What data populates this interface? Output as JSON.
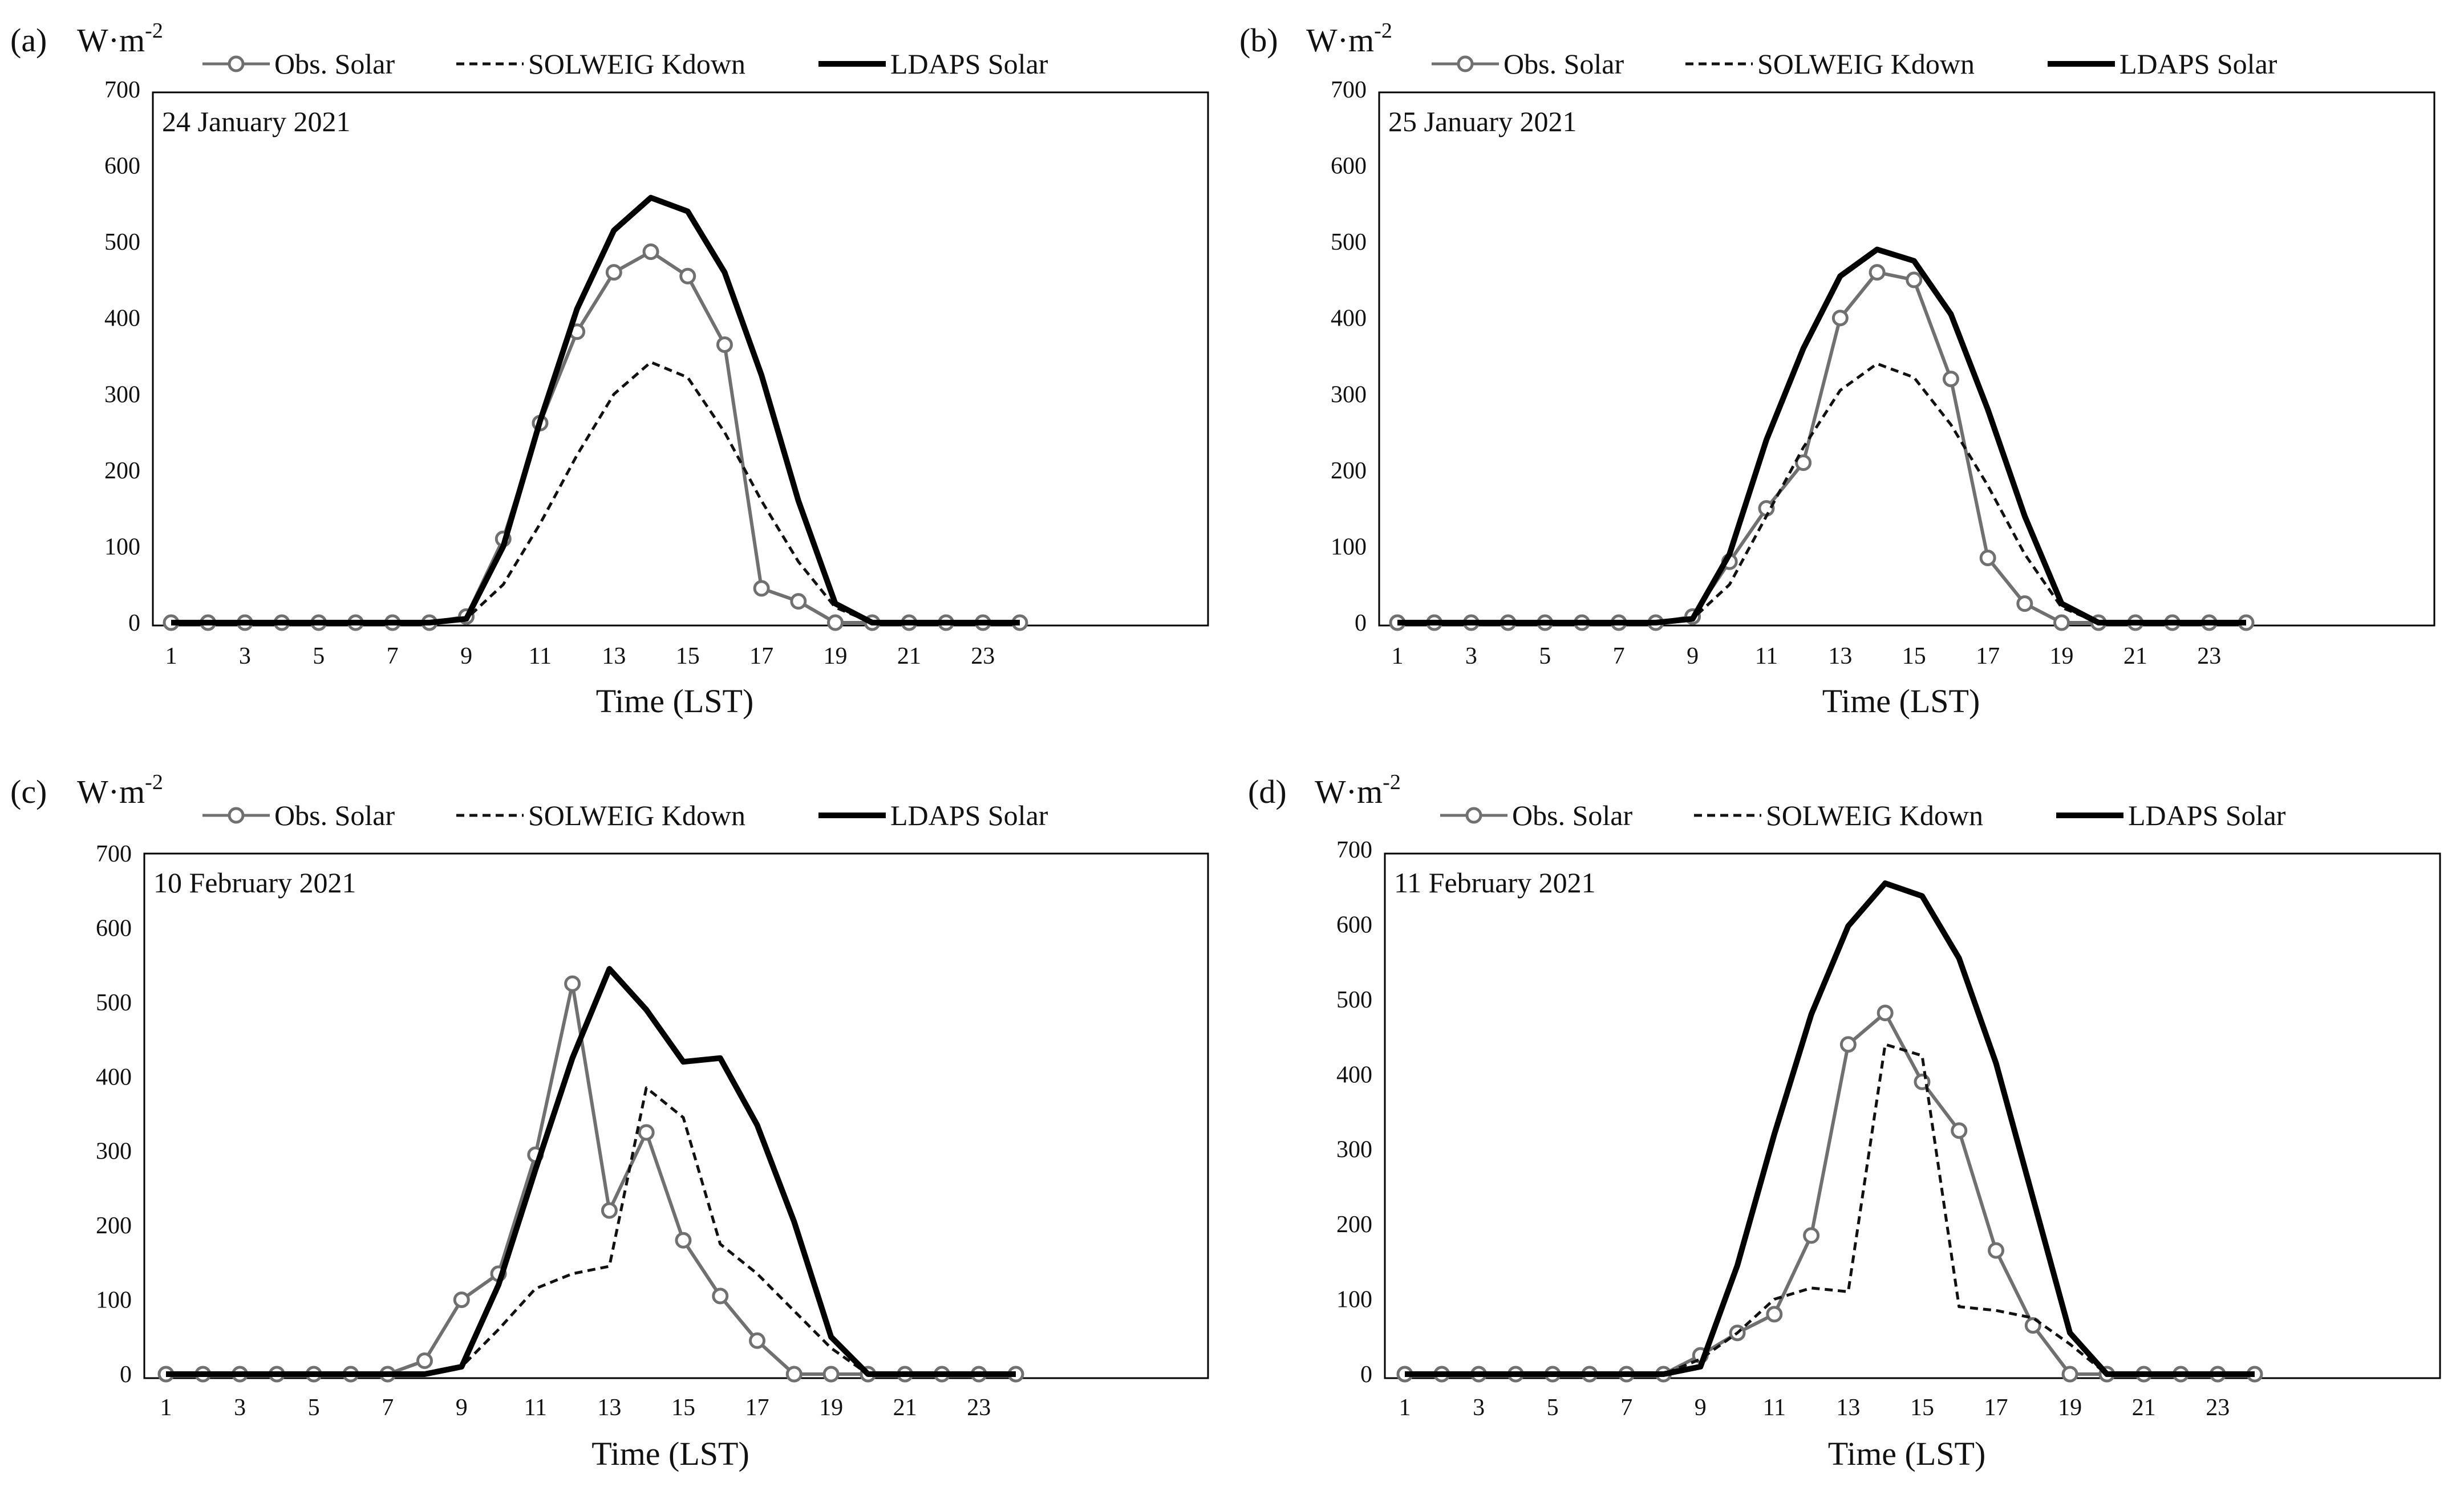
{
  "panels": [
    {
      "letter": "(a)",
      "date": "24 January  2021",
      "unit": "W·m",
      "unit_exp": "-2",
      "xlabel": "Time (LST)",
      "legend": [
        "Obs. Solar",
        "SOLWEIG Kdown",
        "LDAPS Solar"
      ]
    },
    {
      "letter": "(b)",
      "date": "25 January  2021",
      "unit": "W·m",
      "unit_exp": "-2",
      "xlabel": "Time (LST)",
      "legend": [
        "Obs. Solar",
        "SOLWEIG Kdown",
        "LDAPS Solar"
      ]
    },
    {
      "letter": "(c)",
      "date": "10 February  2021",
      "unit": "W·m",
      "unit_exp": "-2",
      "xlabel": "Time (LST)",
      "legend": [
        "Obs. Solar",
        "SOLWEIG Kdown",
        "LDAPS Solar"
      ]
    },
    {
      "letter": "(d)",
      "date": "11 February  2021",
      "unit": "W·m",
      "unit_exp": "-2",
      "xlabel": "Time (LST)",
      "legend": [
        "Obs. Solar",
        "SOLWEIG Kdown",
        "LDAPS Solar"
      ]
    }
  ],
  "colors": {
    "obs": "#707070",
    "solweig": "#111111",
    "ldaps": "#000000",
    "frame": "#000000"
  },
  "chart_data": [
    {
      "type": "line",
      "title": "24 January  2021",
      "xlabel": "Time (LST)",
      "ylabel": "W·m-2",
      "x": [
        1,
        2,
        3,
        4,
        5,
        6,
        7,
        8,
        9,
        10,
        11,
        12,
        13,
        14,
        15,
        16,
        17,
        18,
        19,
        20,
        21,
        22,
        23,
        24
      ],
      "xticks": [
        "1",
        "3",
        "5",
        "7",
        "9",
        "11",
        "13",
        "15",
        "17",
        "19",
        "21",
        "23"
      ],
      "yticks": [
        "0",
        "100",
        "200",
        "300",
        "400",
        "500",
        "600",
        "700"
      ],
      "ylim": [
        0,
        700
      ],
      "grid": false,
      "legend_position": "top",
      "series": [
        {
          "name": "Obs. Solar",
          "style": "gray line with circle markers",
          "values": [
            0,
            0,
            0,
            0,
            0,
            0,
            0,
            0,
            8,
            110,
            262,
            382,
            460,
            487,
            455,
            365,
            45,
            28,
            0,
            0,
            0,
            0,
            0,
            0
          ]
        },
        {
          "name": "SOLWEIG Kdown",
          "style": "dashed",
          "values": [
            0,
            0,
            0,
            0,
            0,
            0,
            0,
            0,
            5,
            50,
            130,
            220,
            300,
            342,
            322,
            250,
            160,
            80,
            20,
            0,
            0,
            0,
            0,
            0
          ]
        },
        {
          "name": "LDAPS Solar",
          "style": "thick solid",
          "values": [
            0,
            0,
            0,
            0,
            0,
            0,
            0,
            0,
            5,
            100,
            265,
            412,
            515,
            558,
            540,
            460,
            325,
            160,
            25,
            0,
            0,
            0,
            0,
            0
          ]
        }
      ]
    },
    {
      "type": "line",
      "title": "25 January  2021",
      "xlabel": "Time (LST)",
      "ylabel": "W·m-2",
      "x": [
        1,
        2,
        3,
        4,
        5,
        6,
        7,
        8,
        9,
        10,
        11,
        12,
        13,
        14,
        15,
        16,
        17,
        18,
        19,
        20,
        21,
        22,
        23,
        24
      ],
      "xticks": [
        "1",
        "3",
        "5",
        "7",
        "9",
        "11",
        "13",
        "15",
        "17",
        "19",
        "21",
        "23"
      ],
      "yticks": [
        "0",
        "100",
        "200",
        "300",
        "400",
        "500",
        "600",
        "700"
      ],
      "ylim": [
        0,
        700
      ],
      "grid": false,
      "legend_position": "top",
      "series": [
        {
          "name": "Obs. Solar",
          "style": "gray line with circle markers",
          "values": [
            0,
            0,
            0,
            0,
            0,
            0,
            0,
            0,
            8,
            80,
            150,
            210,
            400,
            460,
            450,
            320,
            85,
            25,
            0,
            0,
            0,
            0,
            0,
            0
          ]
        },
        {
          "name": "SOLWEIG Kdown",
          "style": "dashed",
          "values": [
            0,
            0,
            0,
            0,
            0,
            0,
            0,
            0,
            5,
            50,
            140,
            230,
            305,
            340,
            322,
            260,
            180,
            90,
            20,
            0,
            0,
            0,
            0,
            0
          ]
        },
        {
          "name": "LDAPS Solar",
          "style": "thick solid",
          "values": [
            0,
            0,
            0,
            0,
            0,
            0,
            0,
            0,
            5,
            90,
            240,
            360,
            455,
            490,
            475,
            405,
            280,
            140,
            25,
            0,
            0,
            0,
            0,
            0
          ]
        }
      ]
    },
    {
      "type": "line",
      "title": "10 February  2021",
      "xlabel": "Time (LST)",
      "ylabel": "W·m-2",
      "x": [
        1,
        2,
        3,
        4,
        5,
        6,
        7,
        8,
        9,
        10,
        11,
        12,
        13,
        14,
        15,
        16,
        17,
        18,
        19,
        20,
        21,
        22,
        23,
        24
      ],
      "xticks": [
        "1",
        "3",
        "5",
        "7",
        "9",
        "11",
        "13",
        "15",
        "17",
        "19",
        "21",
        "23"
      ],
      "yticks": [
        "0",
        "100",
        "200",
        "300",
        "400",
        "500",
        "600",
        "700"
      ],
      "ylim": [
        0,
        700
      ],
      "grid": false,
      "legend_position": "top",
      "series": [
        {
          "name": "Obs. Solar",
          "style": "gray line with circle markers",
          "values": [
            0,
            0,
            0,
            0,
            0,
            0,
            0,
            18,
            100,
            135,
            295,
            525,
            220,
            325,
            180,
            105,
            45,
            0,
            0,
            0,
            0,
            0,
            0,
            0
          ]
        },
        {
          "name": "SOLWEIG Kdown",
          "style": "dashed",
          "values": [
            0,
            0,
            0,
            0,
            0,
            0,
            0,
            0,
            10,
            60,
            115,
            135,
            145,
            385,
            345,
            175,
            135,
            85,
            35,
            0,
            0,
            0,
            0,
            0
          ]
        },
        {
          "name": "LDAPS Solar",
          "style": "thick solid",
          "values": [
            0,
            0,
            0,
            0,
            0,
            0,
            0,
            0,
            10,
            120,
            275,
            425,
            545,
            490,
            420,
            425,
            335,
            205,
            50,
            0,
            0,
            0,
            0,
            0
          ]
        }
      ]
    },
    {
      "type": "line",
      "title": "11 February  2021",
      "xlabel": "Time (LST)",
      "ylabel": "W·m-2",
      "x": [
        1,
        2,
        3,
        4,
        5,
        6,
        7,
        8,
        9,
        10,
        11,
        12,
        13,
        14,
        15,
        16,
        17,
        18,
        19,
        20,
        21,
        22,
        23,
        24
      ],
      "xticks": [
        "1",
        "3",
        "5",
        "7",
        "9",
        "11",
        "13",
        "15",
        "17",
        "19",
        "21",
        "23"
      ],
      "yticks": [
        "0",
        "100",
        "200",
        "300",
        "400",
        "500",
        "600",
        "700"
      ],
      "ylim": [
        0,
        700
      ],
      "grid": false,
      "legend_position": "top",
      "series": [
        {
          "name": "Obs. Solar",
          "style": "gray line with circle markers",
          "values": [
            0,
            0,
            0,
            0,
            0,
            0,
            0,
            0,
            25,
            55,
            80,
            185,
            440,
            482,
            390,
            325,
            165,
            65,
            0,
            0,
            0,
            0,
            0,
            0
          ]
        },
        {
          "name": "SOLWEIG Kdown",
          "style": "dashed",
          "values": [
            0,
            0,
            0,
            0,
            0,
            0,
            0,
            0,
            20,
            55,
            100,
            115,
            110,
            440,
            425,
            90,
            85,
            75,
            40,
            0,
            0,
            0,
            0,
            0
          ]
        },
        {
          "name": "LDAPS Solar",
          "style": "thick solid",
          "values": [
            0,
            0,
            0,
            0,
            0,
            0,
            0,
            0,
            10,
            145,
            320,
            480,
            598,
            655,
            638,
            555,
            415,
            235,
            55,
            0,
            0,
            0,
            0,
            0
          ]
        }
      ]
    }
  ]
}
